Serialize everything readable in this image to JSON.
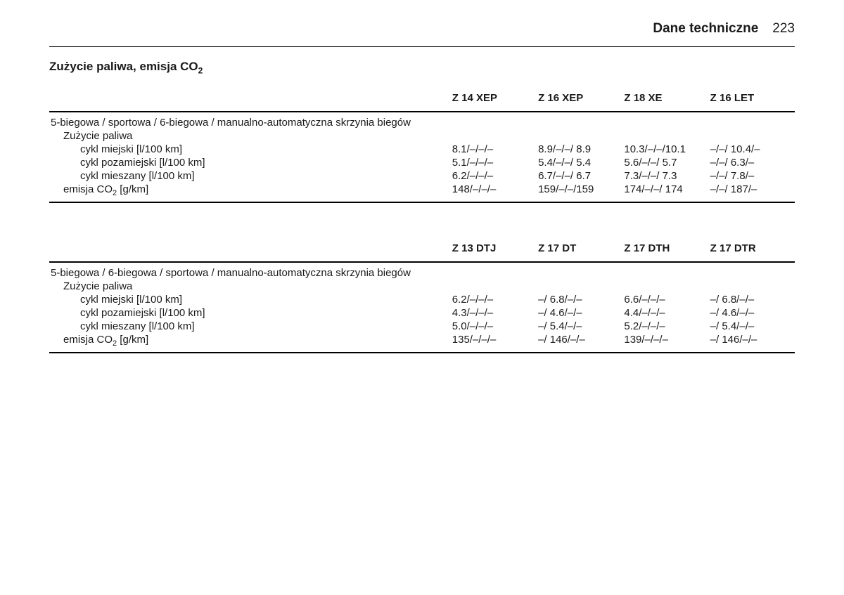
{
  "header": {
    "title": "Dane techniczne",
    "page_number": "223"
  },
  "section_title_prefix": "Zużycie paliwa, emisja CO",
  "section_title_sub": "2",
  "colors": {
    "text": "#1a1a1a",
    "background": "#ffffff",
    "border": "#000000"
  },
  "tables": [
    {
      "columns": [
        "Z 14 XEP",
        "Z 16 XEP",
        "Z 18 XE",
        "Z 16 LET"
      ],
      "group_label": "5-biegowa / sportowa / 6-biegowa / manualno-automatyczna skrzynia biegów",
      "sub_label": "Zużycie paliwa",
      "rows": [
        {
          "label": "cykl miejski [l/100 km]",
          "indent": 2,
          "values": [
            "8.1/–/–/–",
            "8.9/–/–/ 8.9",
            "10.3/–/–/10.1",
            "–/–/ 10.4/–"
          ]
        },
        {
          "label": "cykl pozamiejski [l/100 km]",
          "indent": 2,
          "values": [
            "5.1/–/–/–",
            "5.4/–/–/ 5.4",
            "5.6/–/–/ 5.7",
            "–/–/ 6.3/–"
          ]
        },
        {
          "label": "cykl mieszany [l/100 km]",
          "indent": 2,
          "values": [
            "6.2/–/–/–",
            "6.7/–/–/ 6.7",
            "7.3/–/–/ 7.3",
            "–/–/ 7.8/–"
          ]
        },
        {
          "label_prefix": "emisja CO",
          "label_sub": "2",
          "label_suffix": " [g/km]",
          "indent": 1,
          "values": [
            "148/–/–/–",
            "159/–/–/159",
            "174/–/–/ 174",
            "–/–/ 187/–"
          ]
        }
      ]
    },
    {
      "columns": [
        "Z 13 DTJ",
        "Z 17 DT",
        "Z 17 DTH",
        "Z 17 DTR"
      ],
      "group_label": "5-biegowa / 6-biegowa / sportowa / manualno-automatyczna skrzynia biegów",
      "sub_label": "Zużycie paliwa",
      "rows": [
        {
          "label": "cykl miejski [l/100 km]",
          "indent": 2,
          "values": [
            "6.2/–/–/–",
            "–/ 6.8/–/–",
            "6.6/–/–/–",
            "–/ 6.8/–/–"
          ]
        },
        {
          "label": "cykl pozamiejski [l/100 km]",
          "indent": 2,
          "values": [
            "4.3/–/–/–",
            "–/ 4.6/–/–",
            "4.4/–/–/–",
            "–/ 4.6/–/–"
          ]
        },
        {
          "label": "cykl mieszany [l/100 km]",
          "indent": 2,
          "values": [
            "5.0/–/–/–",
            "–/ 5.4/–/–",
            "5.2/–/–/–",
            "–/ 5.4/–/–"
          ]
        },
        {
          "label_prefix": "emisja CO",
          "label_sub": "2",
          "label_suffix": " [g/km]",
          "indent": 1,
          "values": [
            "135/–/–/–",
            "–/ 146/–/–",
            "139/–/–/–",
            "–/ 146/–/–"
          ]
        }
      ]
    }
  ]
}
